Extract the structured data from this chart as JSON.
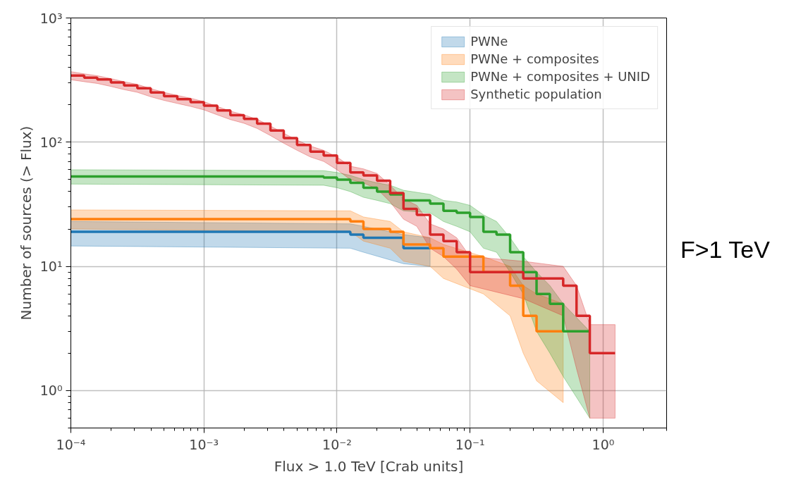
{
  "chart_data": {
    "type": "step",
    "xlabel": "Flux > 1.0 TeV [Crab units]",
    "ylabel": "Number of sources (> Flux)",
    "log": "xy",
    "grid": true,
    "legend": "top right",
    "xlim": [
      0.0001,
      3
    ],
    "ylim": [
      0.5,
      1000
    ],
    "xticks": [
      {
        "value": 0.0001,
        "label": "10⁻⁴"
      },
      {
        "value": 0.001,
        "label": "10⁻³"
      },
      {
        "value": 0.01,
        "label": "10⁻²"
      },
      {
        "value": 0.1,
        "label": "10⁻¹"
      },
      {
        "value": 1,
        "label": "10⁰"
      }
    ],
    "yticks": [
      {
        "value": 1,
        "label": "10⁰"
      },
      {
        "value": 10,
        "label": "10¹"
      },
      {
        "value": 100,
        "label": "10²"
      },
      {
        "value": 1000,
        "label": "10³"
      }
    ],
    "annotations": [
      "F>1 TeV"
    ],
    "series": [
      {
        "name": "PWNe",
        "color": "#1f77b4",
        "x": [
          0.0001,
          0.0126,
          0.0158,
          0.0316,
          0.0501
        ],
        "values": [
          19,
          18,
          17,
          14,
          14
        ],
        "upper": [
          23,
          22,
          21,
          18,
          17
        ],
        "lower": [
          14.6,
          14,
          13,
          10.5,
          10
        ]
      },
      {
        "name": "PWNe + composites",
        "color": "#ff7f0e",
        "x": [
          0.0001,
          0.0126,
          0.0158,
          0.0251,
          0.0316,
          0.0501,
          0.0631,
          0.126,
          0.2,
          0.251,
          0.316,
          0.501
        ],
        "values": [
          24,
          23,
          20,
          19,
          15,
          14,
          12,
          9,
          7,
          4,
          3,
          3
        ],
        "upper": [
          28.5,
          28,
          25,
          23,
          19,
          17,
          15,
          12,
          10,
          7,
          6,
          5
        ],
        "lower": [
          20,
          19,
          16,
          14,
          11,
          10,
          8,
          6,
          4,
          2,
          1.2,
          0.8
        ]
      },
      {
        "name": "PWNe + composites + UNID",
        "color": "#2ca02c",
        "x": [
          0.0001,
          0.00794,
          0.01,
          0.0126,
          0.0158,
          0.02,
          0.0251,
          0.0316,
          0.0501,
          0.0631,
          0.0794,
          0.1,
          0.126,
          0.158,
          0.2,
          0.251,
          0.316,
          0.398,
          0.501,
          0.794
        ],
        "values": [
          53,
          52,
          50,
          47,
          43,
          40,
          38,
          34,
          32,
          28,
          27,
          25,
          19,
          18,
          13,
          9,
          6,
          5,
          3,
          3
        ],
        "upper": [
          60,
          59,
          57,
          54,
          50,
          47,
          45,
          41,
          38,
          34,
          33,
          31,
          26,
          23,
          17,
          12,
          9,
          7,
          5,
          3
        ],
        "lower": [
          46,
          45,
          43,
          40,
          36,
          34,
          32,
          28,
          27,
          23,
          21,
          19,
          14,
          13,
          9,
          6,
          3,
          2,
          1.3,
          0.6
        ]
      },
      {
        "name": "Synthetic population",
        "color": "#d62728",
        "x": [
          0.0001,
          0.000126,
          0.000158,
          0.0002,
          0.000251,
          0.000316,
          0.000398,
          0.000501,
          0.000631,
          0.000794,
          0.001,
          0.00126,
          0.00158,
          0.002,
          0.00251,
          0.00316,
          0.00398,
          0.00501,
          0.00631,
          0.00794,
          0.01,
          0.0126,
          0.0158,
          0.02,
          0.0251,
          0.0316,
          0.0398,
          0.0501,
          0.0631,
          0.0794,
          0.1,
          0.251,
          0.501,
          0.631,
          0.794,
          1.23
        ],
        "values": [
          344,
          331,
          320,
          303,
          286,
          272,
          251,
          235,
          222,
          210,
          197,
          180,
          165,
          154,
          141,
          124,
          108,
          95,
          84,
          78,
          68,
          57,
          54,
          49,
          39,
          29,
          26,
          18,
          16,
          13,
          9,
          8,
          7,
          4,
          2,
          2
        ],
        "upper": [
          370,
          355,
          343,
          325,
          307,
          292,
          270,
          252,
          238,
          226,
          212,
          194,
          178,
          166,
          153,
          135,
          118,
          104,
          93,
          86,
          76,
          64,
          61,
          56,
          45,
          35,
          31,
          22,
          20,
          17,
          12,
          11,
          10,
          7,
          3.4,
          3.4
        ],
        "lower": [
          318,
          307,
          297,
          281,
          265,
          252,
          232,
          217,
          205,
          194,
          182,
          166,
          152,
          142,
          129,
          113,
          98,
          86,
          76,
          70,
          60,
          50,
          47,
          42,
          33,
          24,
          21,
          14,
          12,
          9.5,
          7,
          5.5,
          4,
          1.5,
          0.6,
          0.6
        ]
      }
    ]
  }
}
